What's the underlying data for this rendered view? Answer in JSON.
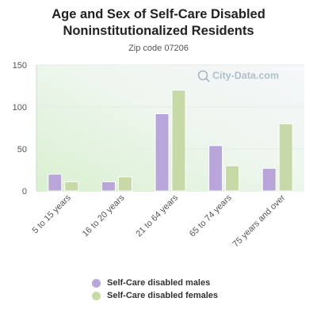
{
  "colors": {
    "males": "#b8a6da",
    "females": "#c6d9a6"
  },
  "watermark": "City-Data.com",
  "chart_data": {
    "type": "bar",
    "title": "Age and Sex of Self-Care Disabled Noninstitutionalized Residents",
    "title_lines": [
      "Age and Sex of Self-Care Disabled",
      "Noninstitutionalized Residents"
    ],
    "subtitle": "Zip code 07206",
    "categories": [
      "5 to 15 years",
      "16 to 20 years",
      "21 to 64 years",
      "65 to 74 years",
      "75 years and over"
    ],
    "series": [
      {
        "name": "Self-Care disabled males",
        "values": [
          20,
          11,
          92,
          54,
          27
        ]
      },
      {
        "name": "Self-Care disabled females",
        "values": [
          11,
          17,
          120,
          30,
          80
        ]
      }
    ],
    "yticks": [
      0,
      50,
      100,
      150
    ],
    "ylim": [
      0,
      150
    ],
    "grid": true,
    "legend": "bottom"
  }
}
